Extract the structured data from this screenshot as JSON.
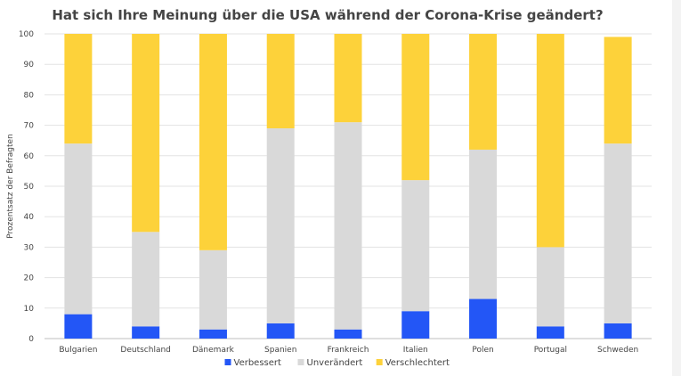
{
  "chart_data": {
    "type": "bar",
    "stacked": true,
    "title": "Hat sich Ihre Meinung über die USA während der Corona-Krise geändert?",
    "xlabel": "",
    "ylabel": "Prozentsatz der Befragten",
    "ylim": [
      0,
      100
    ],
    "yticks": [
      0,
      10,
      20,
      30,
      40,
      50,
      60,
      70,
      80,
      90,
      100
    ],
    "grid": true,
    "legend_position": "bottom",
    "categories": [
      "Bulgarien",
      "Deutschland",
      "Dänemark",
      "Spanien",
      "Frankreich",
      "Italien",
      "Polen",
      "Portugal",
      "Schweden"
    ],
    "series": [
      {
        "name": "Verbessert",
        "color": "#2356f6",
        "values": [
          8,
          4,
          3,
          5,
          3,
          9,
          13,
          4,
          5
        ]
      },
      {
        "name": "Unverändert",
        "color": "#d9d9d9",
        "values": [
          56,
          31,
          26,
          64,
          68,
          43,
          49,
          26,
          59
        ]
      },
      {
        "name": "Verschlechtert",
        "color": "#fdd23a",
        "values": [
          36,
          65,
          71,
          31,
          29,
          48,
          38,
          70,
          35
        ]
      }
    ]
  }
}
